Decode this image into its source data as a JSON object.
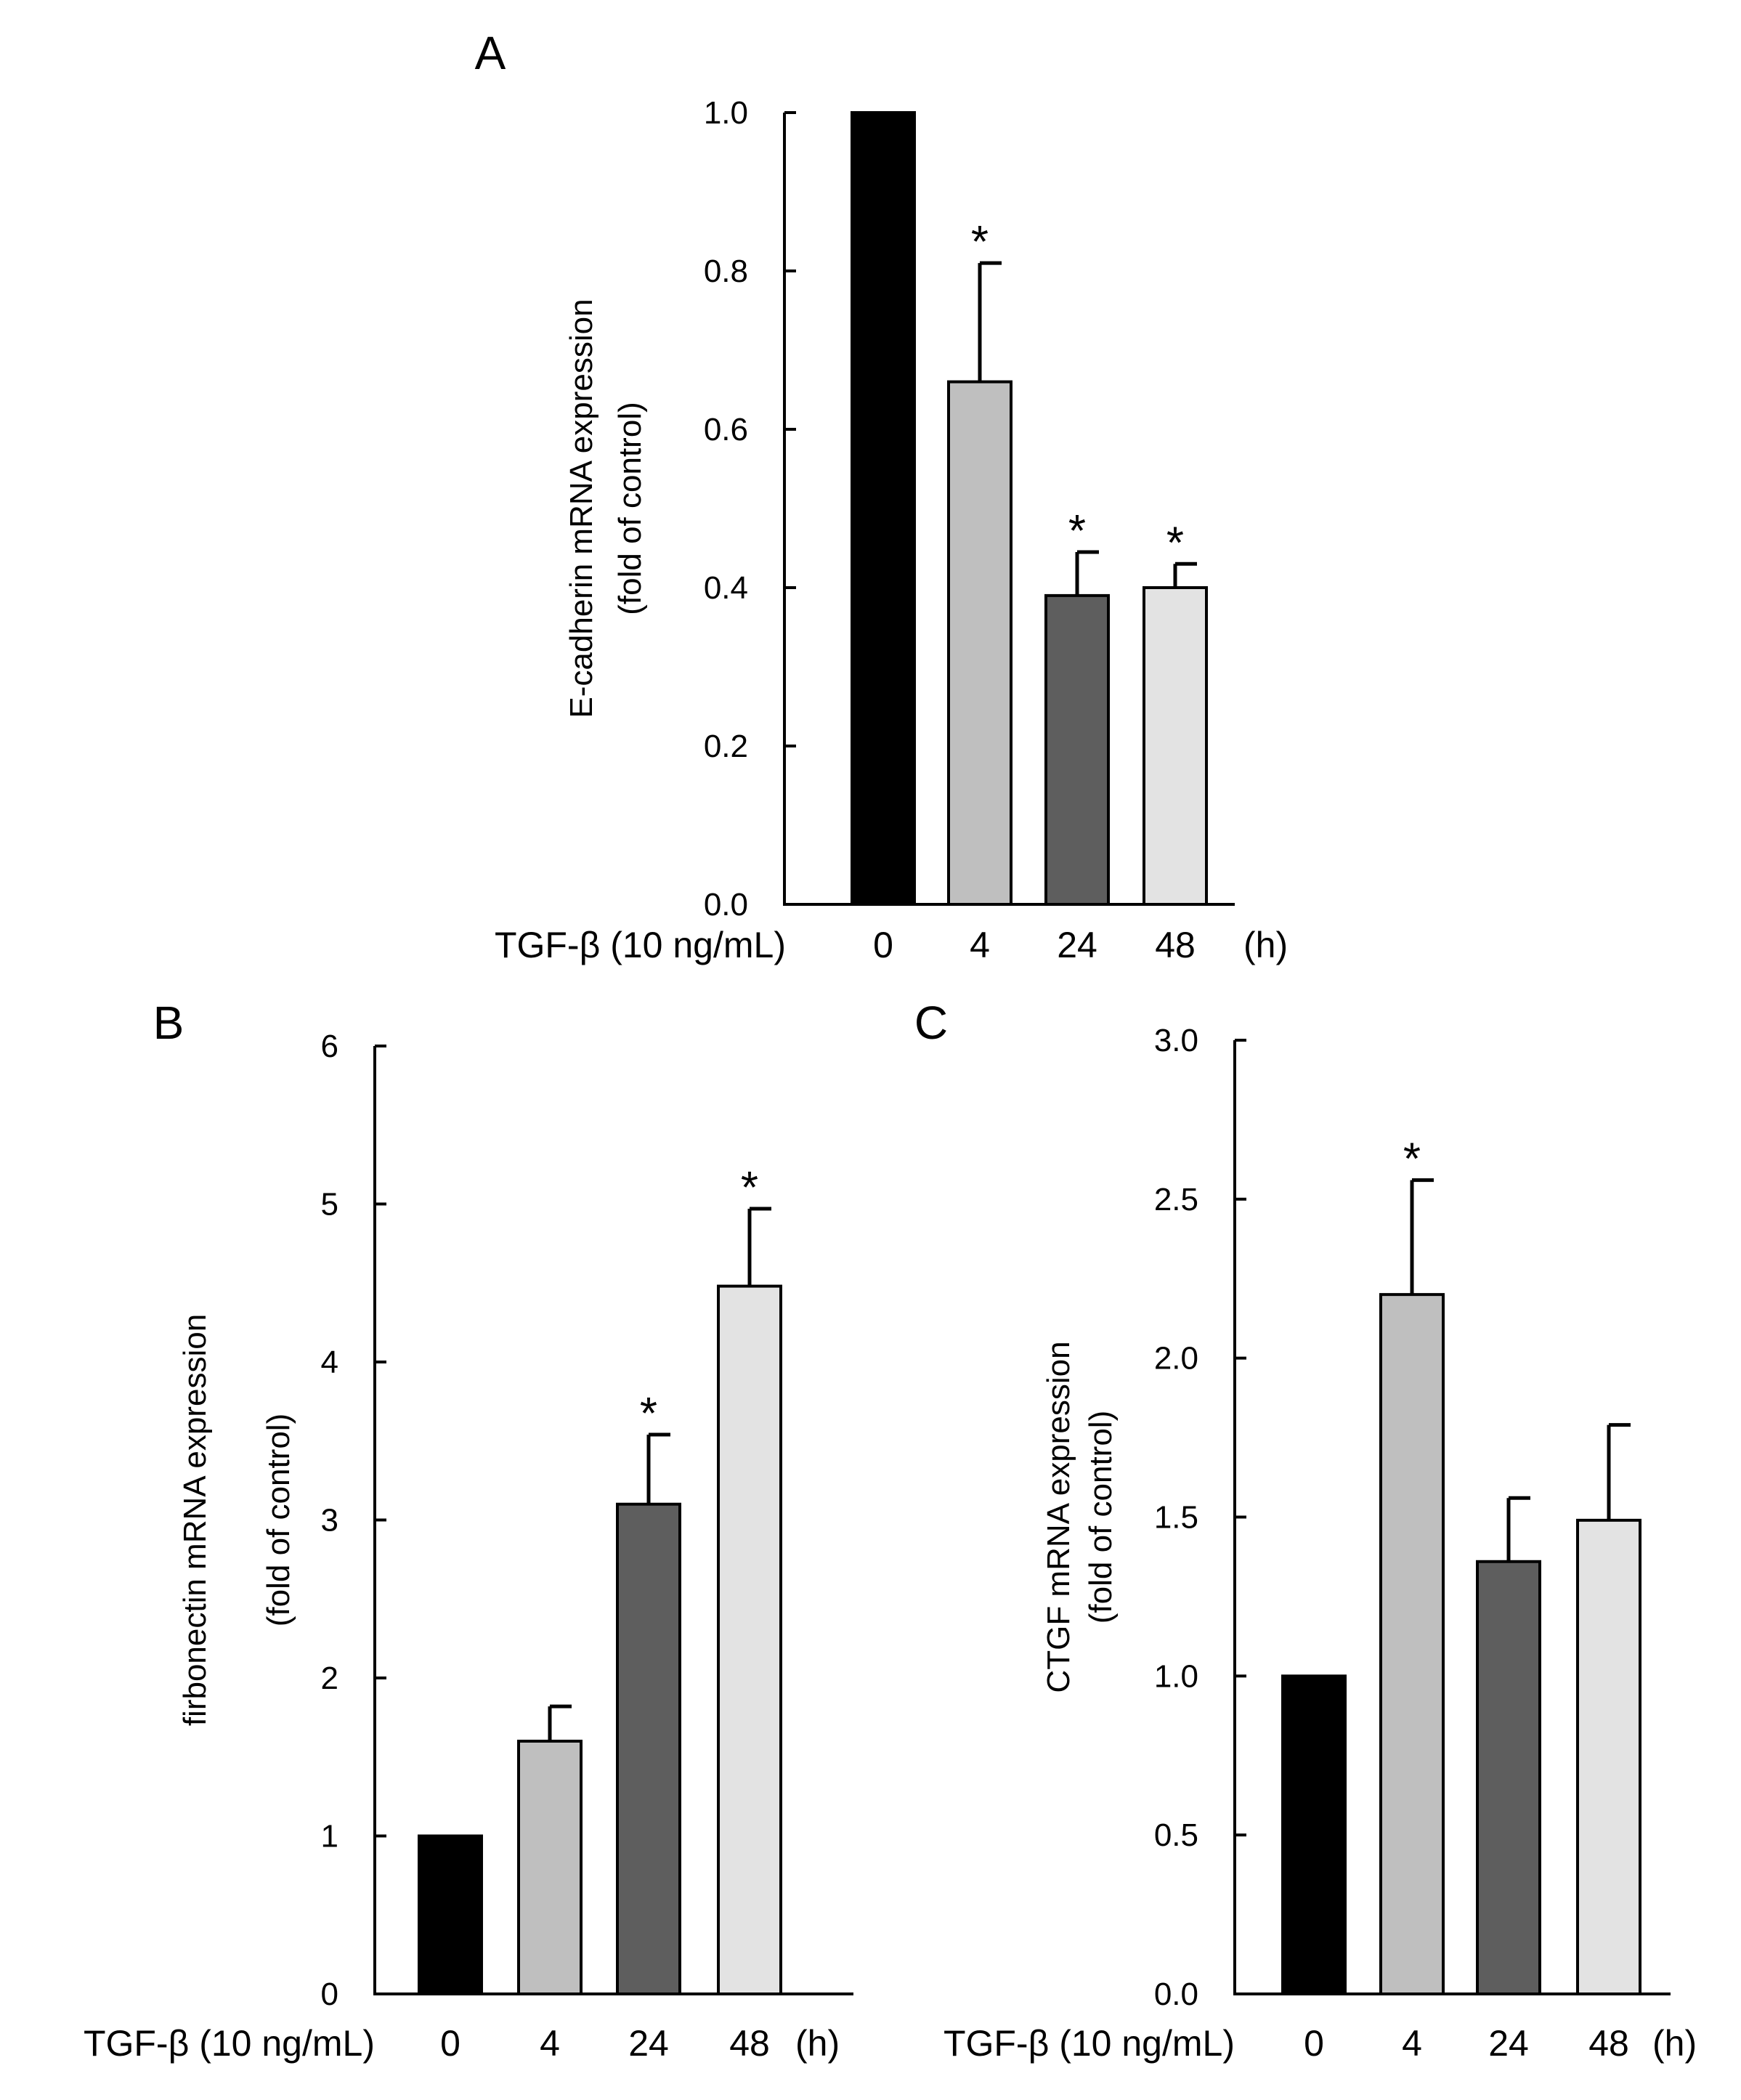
{
  "chart_data": [
    {
      "type": "bar",
      "panel": "A",
      "categories": [
        "0",
        "4",
        "24",
        "48"
      ],
      "values": [
        1.0,
        0.66,
        0.39,
        0.4
      ],
      "errors": [
        0,
        0.15,
        0.055,
        0.03
      ],
      "significant": [
        false,
        true,
        true,
        true
      ],
      "significance_marker": "*",
      "ylim": [
        0,
        1.0
      ],
      "yticks": [
        "0.0",
        "0.2",
        "0.4",
        "0.6",
        "0.8",
        "1.0"
      ],
      "ylabel": "E-cadherin mRNA expression",
      "ylabel2": "(fold of control)",
      "treatment_label": "TGF-β (10 ng/mL)",
      "unit_label": "(h)",
      "bar_colors": [
        "#000000",
        "#bfbfbf",
        "#5e5e5e",
        "#e3e3e3"
      ]
    },
    {
      "type": "bar",
      "panel": "B",
      "categories": [
        "0",
        "4",
        "24",
        "48"
      ],
      "values": [
        1.0,
        1.6,
        3.1,
        4.48
      ],
      "errors": [
        0,
        0.22,
        0.44,
        0.49
      ],
      "significant": [
        false,
        false,
        true,
        true
      ],
      "significance_marker": "*",
      "ylim": [
        0,
        6
      ],
      "yticks": [
        "0",
        "1",
        "2",
        "3",
        "4",
        "5",
        "6"
      ],
      "ylabel": "firbonectin mRNA expression",
      "ylabel2": "(fold of control)",
      "treatment_label": "TGF-β (10 ng/mL)",
      "unit_label": "(h)",
      "bar_colors": [
        "#000000",
        "#bfbfbf",
        "#5e5e5e",
        "#e3e3e3"
      ]
    },
    {
      "type": "bar",
      "panel": "C",
      "categories": [
        "0",
        "4",
        "24",
        "48"
      ],
      "values": [
        1.0,
        2.2,
        1.36,
        1.49
      ],
      "errors": [
        0,
        0.36,
        0.2,
        0.3
      ],
      "significant": [
        false,
        true,
        false,
        false
      ],
      "significance_marker": "*",
      "ylim": [
        0,
        3.0
      ],
      "yticks": [
        "0.0",
        "0.5",
        "1.0",
        "1.5",
        "2.0",
        "2.5",
        "3.0"
      ],
      "ylabel": "CTGF mRNA expression",
      "ylabel2": "(fold of control)",
      "treatment_label": "TGF-β (10 ng/mL)",
      "unit_label": "(h)",
      "bar_colors": [
        "#000000",
        "#bfbfbf",
        "#5e5e5e",
        "#e3e3e3"
      ]
    }
  ]
}
